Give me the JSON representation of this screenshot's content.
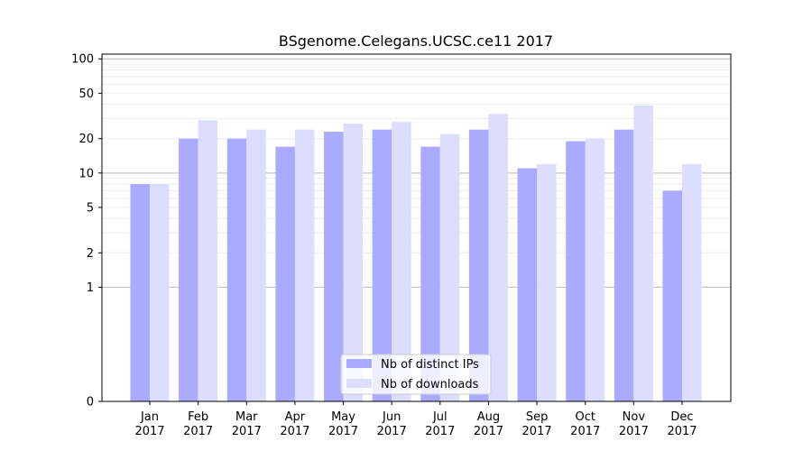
{
  "chart_data": {
    "type": "bar",
    "title": "BSgenome.Celegans.UCSC.ce11 2017",
    "categories": [
      "Jan\n2017",
      "Feb\n2017",
      "Mar\n2017",
      "Apr\n2017",
      "May\n2017",
      "Jun\n2017",
      "Jul\n2017",
      "Aug\n2017",
      "Sep\n2017",
      "Oct\n2017",
      "Nov\n2017",
      "Dec\n2017"
    ],
    "series": [
      {
        "name": "Nb of distinct IPs",
        "color": "#aaaaff",
        "values": [
          8,
          20,
          20,
          17,
          23,
          24,
          17,
          24,
          11,
          19,
          24,
          7
        ]
      },
      {
        "name": "Nb of downloads",
        "color": "#ddddff",
        "values": [
          8,
          29,
          24,
          24,
          27,
          28,
          22,
          33,
          12,
          20,
          39,
          12
        ]
      }
    ],
    "xlabel": "",
    "ylabel": "",
    "yscale": "symlog",
    "yticks": [
      0,
      1,
      2,
      5,
      10,
      20,
      50,
      100
    ],
    "ylim": [
      0,
      110
    ],
    "grid": true,
    "legend_position": "lower-center"
  }
}
